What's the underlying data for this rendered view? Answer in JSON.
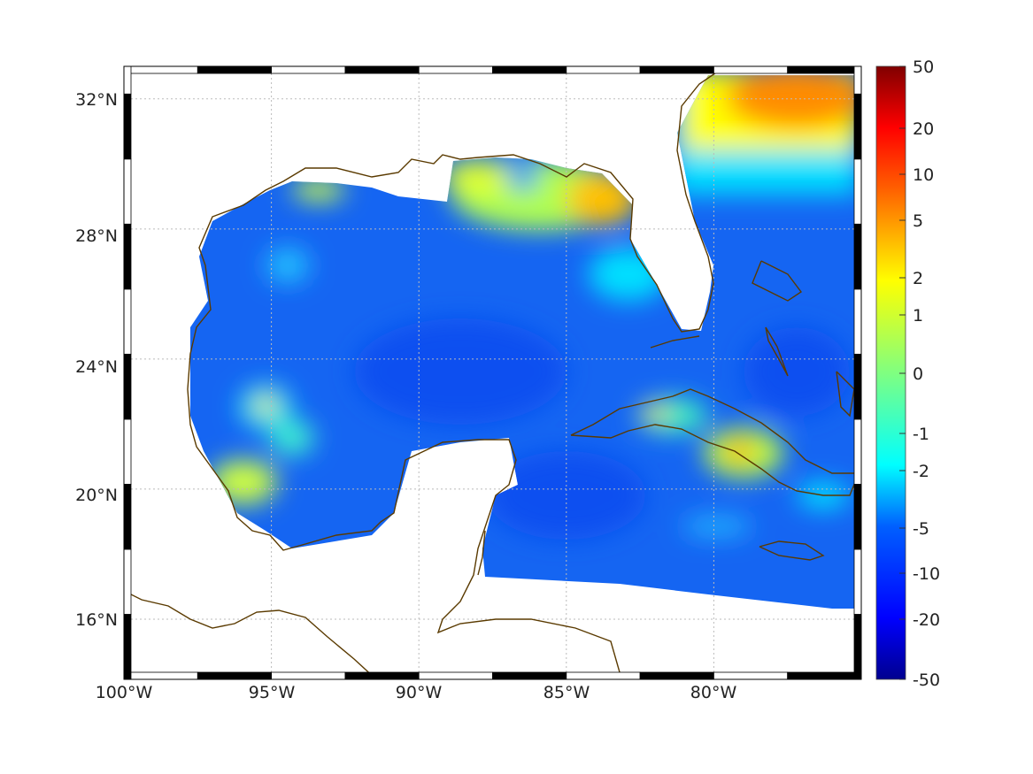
{
  "map": {
    "region": "Gulf of Mexico and Caribbean",
    "lat_ticks": [
      {
        "value": 32,
        "label": "32°N"
      },
      {
        "value": 28,
        "label": "28°N"
      },
      {
        "value": 24,
        "label": "24°N"
      },
      {
        "value": 20,
        "label": "20°N"
      },
      {
        "value": 16,
        "label": "16°N"
      }
    ],
    "lon_ticks": [
      {
        "value": -100,
        "label": "100°W"
      },
      {
        "value": -95,
        "label": "95°W"
      },
      {
        "value": -90,
        "label": "90°W"
      },
      {
        "value": -85,
        "label": "85°W"
      },
      {
        "value": -80,
        "label": "80°W"
      }
    ],
    "lat_range": [
      14.15,
      33.0
    ],
    "lon_range": [
      -100,
      -75
    ],
    "colors": {
      "coast": "#5a3a00",
      "ocean_base": "#1565f2",
      "grid": "#bbbbbb"
    }
  },
  "colorbar": {
    "ticks": [
      "50",
      "20",
      "10",
      "5",
      "2",
      "1",
      "0",
      "-1",
      "-2",
      "-5",
      "-10",
      "-20",
      "-50"
    ],
    "colormap": "jet"
  }
}
